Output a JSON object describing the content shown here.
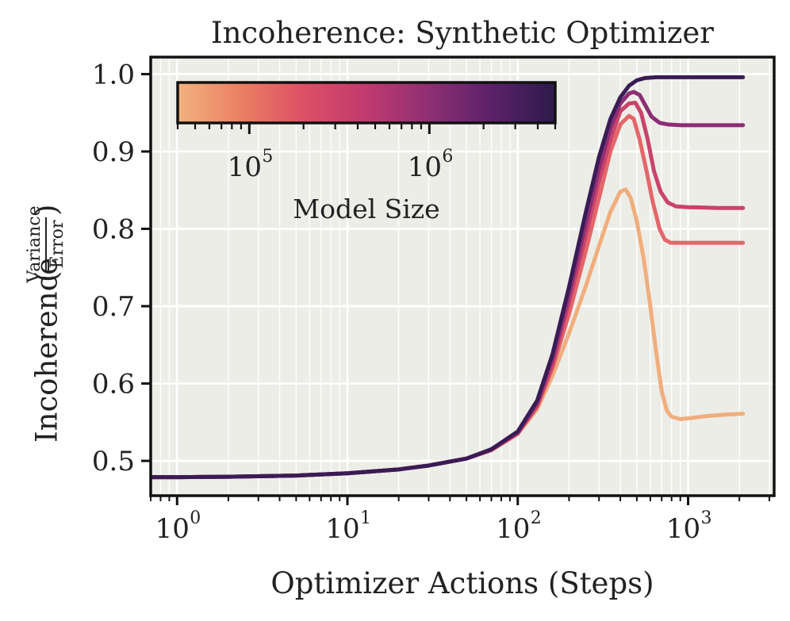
{
  "chart_data": {
    "type": "line",
    "title": "Incoherence: Synthetic Optimizer",
    "xlabel": "Optimizer Actions (Steps)",
    "ylabel": {
      "main": "Incoherence",
      "fraction_numerator": "Variance",
      "fraction_denominator": "Error"
    },
    "x_scale": "log",
    "xlim": [
      0.7,
      3200
    ],
    "ylim": [
      0.455,
      1.022
    ],
    "x_ticks": [
      {
        "base": "10",
        "exp": "0",
        "value": 1
      },
      {
        "base": "10",
        "exp": "1",
        "value": 10
      },
      {
        "base": "10",
        "exp": "2",
        "value": 100
      },
      {
        "base": "10",
        "exp": "3",
        "value": 1000
      }
    ],
    "y_ticks": [
      "0.5",
      "0.6",
      "0.7",
      "0.8",
      "0.9",
      "1.0"
    ],
    "grid": true,
    "background_color": "#ecede7",
    "colorbar": {
      "label": "Model Size",
      "scale": "log",
      "range": [
        40000,
        5000000
      ],
      "ticks": [
        {
          "base": "10",
          "exp": "5",
          "value": 100000
        },
        {
          "base": "10",
          "exp": "6",
          "value": 1000000
        }
      ],
      "colors": [
        "#f2b27f",
        "#ea8063",
        "#dd5065",
        "#c03a6e",
        "#8e2f73",
        "#5b2168",
        "#2d1a4a"
      ]
    },
    "series": [
      {
        "model_size": 50000,
        "color": "#f0ae7e",
        "points": [
          [
            0.7,
            0.479
          ],
          [
            1,
            0.479
          ],
          [
            2,
            0.4795
          ],
          [
            5,
            0.481
          ],
          [
            10,
            0.484
          ],
          [
            20,
            0.489
          ],
          [
            30,
            0.494
          ],
          [
            50,
            0.503
          ],
          [
            70,
            0.514
          ],
          [
            100,
            0.535
          ],
          [
            130,
            0.567
          ],
          [
            160,
            0.61
          ],
          [
            200,
            0.665
          ],
          [
            250,
            0.725
          ],
          [
            300,
            0.778
          ],
          [
            350,
            0.822
          ],
          [
            400,
            0.848
          ],
          [
            430,
            0.851
          ],
          [
            460,
            0.84
          ],
          [
            500,
            0.81
          ],
          [
            550,
            0.76
          ],
          [
            600,
            0.7
          ],
          [
            650,
            0.64
          ],
          [
            700,
            0.59
          ],
          [
            750,
            0.565
          ],
          [
            800,
            0.557
          ],
          [
            900,
            0.554
          ],
          [
            1000,
            0.555
          ],
          [
            1300,
            0.558
          ],
          [
            1700,
            0.56
          ],
          [
            2100,
            0.561
          ]
        ]
      },
      {
        "model_size": 150000,
        "color": "#e4666a",
        "points": [
          [
            0.7,
            0.479
          ],
          [
            1,
            0.479
          ],
          [
            2,
            0.4795
          ],
          [
            5,
            0.481
          ],
          [
            10,
            0.484
          ],
          [
            20,
            0.489
          ],
          [
            30,
            0.494
          ],
          [
            50,
            0.503
          ],
          [
            70,
            0.514
          ],
          [
            100,
            0.535
          ],
          [
            130,
            0.57
          ],
          [
            160,
            0.62
          ],
          [
            200,
            0.69
          ],
          [
            250,
            0.77
          ],
          [
            300,
            0.84
          ],
          [
            350,
            0.9
          ],
          [
            400,
            0.935
          ],
          [
            450,
            0.946
          ],
          [
            480,
            0.942
          ],
          [
            520,
            0.915
          ],
          [
            570,
            0.875
          ],
          [
            620,
            0.835
          ],
          [
            680,
            0.8
          ],
          [
            730,
            0.786
          ],
          [
            790,
            0.782
          ],
          [
            900,
            0.782
          ],
          [
            1200,
            0.782
          ],
          [
            2100,
            0.782
          ]
        ]
      },
      {
        "model_size": 400000,
        "color": "#c9436a",
        "points": [
          [
            0.7,
            0.479
          ],
          [
            1,
            0.479
          ],
          [
            2,
            0.4795
          ],
          [
            5,
            0.481
          ],
          [
            10,
            0.484
          ],
          [
            20,
            0.489
          ],
          [
            30,
            0.494
          ],
          [
            50,
            0.503
          ],
          [
            70,
            0.514
          ],
          [
            100,
            0.536
          ],
          [
            130,
            0.572
          ],
          [
            160,
            0.625
          ],
          [
            200,
            0.705
          ],
          [
            250,
            0.79
          ],
          [
            300,
            0.862
          ],
          [
            350,
            0.915
          ],
          [
            400,
            0.952
          ],
          [
            450,
            0.962
          ],
          [
            490,
            0.963
          ],
          [
            530,
            0.95
          ],
          [
            580,
            0.915
          ],
          [
            630,
            0.875
          ],
          [
            690,
            0.848
          ],
          [
            760,
            0.834
          ],
          [
            850,
            0.829
          ],
          [
            1000,
            0.828
          ],
          [
            1500,
            0.827
          ],
          [
            2100,
            0.827
          ]
        ]
      },
      {
        "model_size": 1200000,
        "color": "#8c2e73",
        "points": [
          [
            0.7,
            0.479
          ],
          [
            1,
            0.479
          ],
          [
            2,
            0.4795
          ],
          [
            5,
            0.481
          ],
          [
            10,
            0.484
          ],
          [
            20,
            0.489
          ],
          [
            30,
            0.494
          ],
          [
            50,
            0.503
          ],
          [
            70,
            0.515
          ],
          [
            100,
            0.537
          ],
          [
            130,
            0.575
          ],
          [
            160,
            0.632
          ],
          [
            200,
            0.715
          ],
          [
            250,
            0.805
          ],
          [
            300,
            0.878
          ],
          [
            350,
            0.93
          ],
          [
            400,
            0.962
          ],
          [
            450,
            0.975
          ],
          [
            480,
            0.977
          ],
          [
            520,
            0.973
          ],
          [
            560,
            0.96
          ],
          [
            610,
            0.945
          ],
          [
            680,
            0.937
          ],
          [
            760,
            0.935
          ],
          [
            900,
            0.934
          ],
          [
            1500,
            0.934
          ],
          [
            2100,
            0.934
          ]
        ]
      },
      {
        "model_size": 3500000,
        "color": "#3a1c55",
        "points": [
          [
            0.7,
            0.479
          ],
          [
            1,
            0.479
          ],
          [
            2,
            0.4795
          ],
          [
            5,
            0.481
          ],
          [
            10,
            0.484
          ],
          [
            20,
            0.489
          ],
          [
            30,
            0.494
          ],
          [
            50,
            0.503
          ],
          [
            70,
            0.515
          ],
          [
            100,
            0.538
          ],
          [
            130,
            0.578
          ],
          [
            160,
            0.638
          ],
          [
            200,
            0.725
          ],
          [
            250,
            0.82
          ],
          [
            300,
            0.893
          ],
          [
            350,
            0.942
          ],
          [
            400,
            0.97
          ],
          [
            450,
            0.985
          ],
          [
            500,
            0.992
          ],
          [
            560,
            0.995
          ],
          [
            650,
            0.996
          ],
          [
            800,
            0.996
          ],
          [
            1200,
            0.996
          ],
          [
            2100,
            0.996
          ]
        ]
      }
    ]
  }
}
